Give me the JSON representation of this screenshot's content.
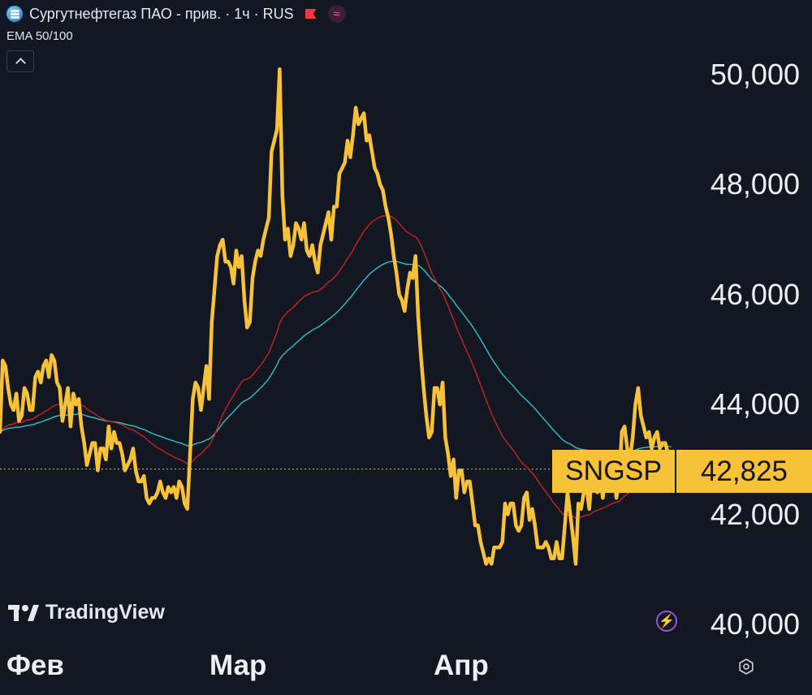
{
  "header": {
    "title": "Сургутнефтегаз ПАО - прив. · 1ч · RUS",
    "indicator": "EMA 50/100"
  },
  "icons": {
    "symbol": "symbol-logo-icon",
    "flag": "flag-icon",
    "approx": "approx-icon",
    "collapse": "chevron-up-icon",
    "lightning": "lightning-icon",
    "settings": "settings-icon"
  },
  "branding": {
    "name": "TradingView"
  },
  "price_tag": {
    "ticker": "SNGSP",
    "price": "42,825",
    "color": "#f7c237"
  },
  "chart_data": {
    "type": "line",
    "title": "Сургутнефтегаз ПАО - прив. · 1ч · RUS",
    "y_ticks": [
      "50,000",
      "48,000",
      "46,000",
      "44,000",
      "42,000",
      "40,000"
    ],
    "x_ticks": [
      "Фев",
      "Мар",
      "Апр"
    ],
    "ylim": [
      40000,
      50200
    ],
    "last_price": 42825,
    "colors": {
      "price": "#f7c237",
      "ema50": "#c8231e",
      "ema100": "#2cc3c7",
      "background": "#131722"
    },
    "series": [
      {
        "name": "price",
        "values": [
          43500,
          44800,
          44700,
          44300,
          44000,
          43900,
          44200,
          43700,
          43800,
          44300,
          44200,
          43900,
          43900,
          44500,
          44600,
          44400,
          44700,
          44800,
          44500,
          44900,
          44800,
          44400,
          44300,
          43700,
          44000,
          44300,
          43600,
          44200,
          44000,
          44100,
          43600,
          43300,
          42900,
          43100,
          43300,
          43300,
          42800,
          43200,
          43200,
          43000,
          43600,
          43200,
          43500,
          43300,
          43300,
          43100,
          42800,
          42900,
          43000,
          43200,
          42800,
          42600,
          42600,
          42700,
          42300,
          42200,
          42300,
          42300,
          42400,
          42600,
          42400,
          42300,
          42500,
          42400,
          42500,
          42300,
          42600,
          42500,
          42200,
          42100,
          43100,
          44100,
          44400,
          44300,
          43900,
          44300,
          44700,
          44100,
          45500,
          46100,
          46700,
          46900,
          47000,
          46600,
          46600,
          46500,
          46200,
          46800,
          46500,
          46700,
          45900,
          45400,
          45500,
          46300,
          46600,
          46800,
          46700,
          47000,
          47200,
          47400,
          48600,
          48800,
          49000,
          50100,
          47800,
          47000,
          47200,
          46700,
          46900,
          47300,
          47200,
          47000,
          47300,
          46800,
          46700,
          46900,
          46600,
          46400,
          46900,
          47100,
          47300,
          47500,
          47000,
          47600,
          47600,
          48200,
          48300,
          48400,
          48800,
          48500,
          48900,
          49400,
          49100,
          49200,
          49300,
          48800,
          48900,
          48600,
          48300,
          48200,
          48000,
          47900,
          47600,
          47400,
          47100,
          46700,
          46400,
          46000,
          45900,
          45700,
          46100,
          46400,
          46300,
          46700,
          45600,
          44900,
          44300,
          43800,
          43400,
          43500,
          44300,
          44300,
          44000,
          44400,
          43400,
          43100,
          42700,
          43000,
          42300,
          42800,
          42800,
          42400,
          42600,
          42600,
          42200,
          41800,
          41800,
          41500,
          41300,
          41100,
          41200,
          41100,
          41400,
          41400,
          41400,
          41500,
          42200,
          42000,
          42200,
          42200,
          41800,
          41700,
          41800,
          42300,
          42400,
          41900,
          42100,
          41800,
          41400,
          41400,
          41400,
          41500,
          41400,
          41200,
          41200,
          41500,
          41200,
          41200,
          41800,
          42400,
          42000,
          41600,
          41100,
          42200,
          42100,
          42400,
          42500,
          42100,
          42800,
          42800,
          42400,
          42700,
          42300,
          42800,
          42700,
          42700,
          42800,
          42300,
          42600,
          43500,
          43600,
          43200,
          43000,
          43400,
          44000,
          44300,
          43800,
          43600,
          43400,
          43500,
          43200,
          43400,
          43500,
          43200,
          43300,
          43300,
          43100,
          42825
        ]
      },
      {
        "name": "EMA 50",
        "values": [
          43500,
          43552,
          43596,
          43623,
          43637,
          43645,
          43667,
          43668,
          43674,
          43699,
          43719,
          43727,
          43735,
          43766,
          43798,
          43821,
          43855,
          43889,
          43911,
          43948,
          43980,
          43996,
          44009,
          44003,
          44003,
          44014,
          43998,
          44006,
          44005,
          44009,
          43992,
          43964,
          43919,
          43883,
          43857,
          43832,
          43789,
          43764,
          43740,
          43709,
          43705,
          43685,
          43678,
          43663,
          43650,
          43630,
          43598,
          43572,
          43550,
          43536,
          43508,
          43474,
          43442,
          43415,
          43371,
          43325,
          43285,
          43246,
          43213,
          43189,
          43157,
          43123,
          43098,
          43071,
          43049,
          43020,
          43004,
          42984,
          42953,
          42918,
          42925,
          42971,
          43026,
          43071,
          43104,
          43152,
          43215,
          43249,
          43335,
          43441,
          43565,
          43688,
          43810,
          43909,
          44004,
          44092,
          44163,
          44255,
          44331,
          44411,
          44449,
          44465,
          44484,
          44534,
          44594,
          44660,
          44718,
          44787,
          44861,
          44938,
          45063,
          45189,
          45316,
          45482,
          45574,
          45629,
          45689,
          45726,
          45768,
          45824,
          45875,
          45916,
          45968,
          45994,
          46014,
          46040,
          46052,
          46057,
          46092,
          46132,
          46178,
          46230,
          46259,
          46310,
          46359,
          46430,
          46502,
          46574,
          46658,
          46726,
          46808,
          46906,
          46986,
          47068,
          47150,
          47211,
          47273,
          47321,
          47357,
          47389,
          47412,
          47430,
          47436,
          47434,
          47420,
          47391,
          47351,
          47297,
          47240,
          47177,
          47133,
          47104,
          47072,
          47053,
          46989,
          46901,
          46788,
          46660,
          46521,
          46391,
          46297,
          46206,
          46108,
          46028,
          45913,
          45793,
          45663,
          45550,
          45412,
          45299,
          45189,
          45067,
          44958,
          44853,
          44737,
          44608,
          44484,
          44356,
          44224,
          44088,
          43962,
          43837,
          43728,
          43623,
          43521,
          43427,
          43362,
          43291,
          43230,
          43170,
          43097,
          43022,
          42954,
          42907,
          42865,
          42804,
          42754,
          42695,
          42619,
          42545,
          42475,
          42411,
          42344,
          42272,
          42202,
          42147,
          42084,
          42022,
          41988,
          41980,
          41981,
          41968,
          41935,
          41945,
          41950,
          41967,
          41986,
          41991,
          42025,
          42057,
          42073,
          42101,
          42109,
          42138,
          42161,
          42186,
          42213,
          42219,
          42235,
          42285,
          42338,
          42372,
          42397,
          42436,
          42496,
          42567,
          42622,
          42665,
          42699,
          42733,
          42755,
          42783,
          42814,
          42833,
          42855,
          42875,
          42886,
          42884
        ]
      },
      {
        "name": "EMA 100",
        "values": [
          43500,
          43527,
          43550,
          43564,
          43571,
          43576,
          43588,
          43590,
          43594,
          43607,
          43618,
          43624,
          43630,
          43647,
          43666,
          43680,
          43699,
          43720,
          43734,
          43757,
          43777,
          43790,
          43801,
          43799,
          43803,
          43813,
          43809,
          43817,
          43821,
          43826,
          43821,
          43810,
          43791,
          43776,
          43766,
          43756,
          43736,
          43725,
          43714,
          43700,
          43698,
          43688,
          43684,
          43676,
          43669,
          43659,
          43643,
          43630,
          43619,
          43611,
          43596,
          43578,
          43561,
          43547,
          43524,
          43499,
          43477,
          43456,
          43437,
          43423,
          43404,
          43384,
          43368,
          43351,
          43337,
          43319,
          43306,
          43291,
          43271,
          43249,
          43246,
          43262,
          43283,
          43301,
          43312,
          43331,
          43357,
          43370,
          43410,
          43462,
          43525,
          43590,
          43656,
          43713,
          43769,
          43822,
          43868,
          43926,
          43977,
          44031,
          44066,
          44090,
          44117,
          44159,
          44206,
          44256,
          44303,
          44355,
          44410,
          44469,
          44550,
          44634,
          44721,
          44826,
          44891,
          44938,
          44988,
          45027,
          45068,
          45116,
          45162,
          45203,
          45250,
          45285,
          45317,
          45352,
          45380,
          45403,
          45436,
          45472,
          45511,
          45553,
          45585,
          45628,
          45670,
          45722,
          45775,
          45829,
          45890,
          45944,
          46004,
          46073,
          46135,
          46198,
          46261,
          46313,
          46366,
          46412,
          46451,
          46488,
          46520,
          46550,
          46573,
          46591,
          46602,
          46604,
          46601,
          46590,
          46576,
          46559,
          46551,
          46550,
          46546,
          46550,
          46530,
          46496,
          46451,
          46396,
          46335,
          46279,
          46240,
          46202,
          46158,
          46122,
          46067,
          46007,
          45941,
          45882,
          45810,
          45748,
          45686,
          45617,
          45553,
          45490,
          45420,
          45343,
          45265,
          45183,
          45098,
          45010,
          44926,
          44842,
          44767,
          44694,
          44621,
          44552,
          44499,
          44442,
          44390,
          44338,
          44280,
          44221,
          44165,
          44120,
          44077,
          44025,
          43978,
          43926,
          43867,
          43808,
          43751,
          43696,
          43640,
          43582,
          43525,
          43475,
          43421,
          43368,
          43329,
          43302,
          43279,
          43250,
          43214,
          43201,
          43186,
          43177,
          43171,
          43158,
          43161,
          43163,
          43157,
          43156,
          43144,
          43146,
          43146,
          43146,
          43148,
          43138,
          43134,
          43142,
          43151,
          43152,
          43149,
          43154,
          43170,
          43192,
          43205,
          43214,
          43219,
          43226,
          43226,
          43230,
          43237,
          43237,
          43239,
          43242,
          43239,
          43232
        ]
      }
    ]
  }
}
